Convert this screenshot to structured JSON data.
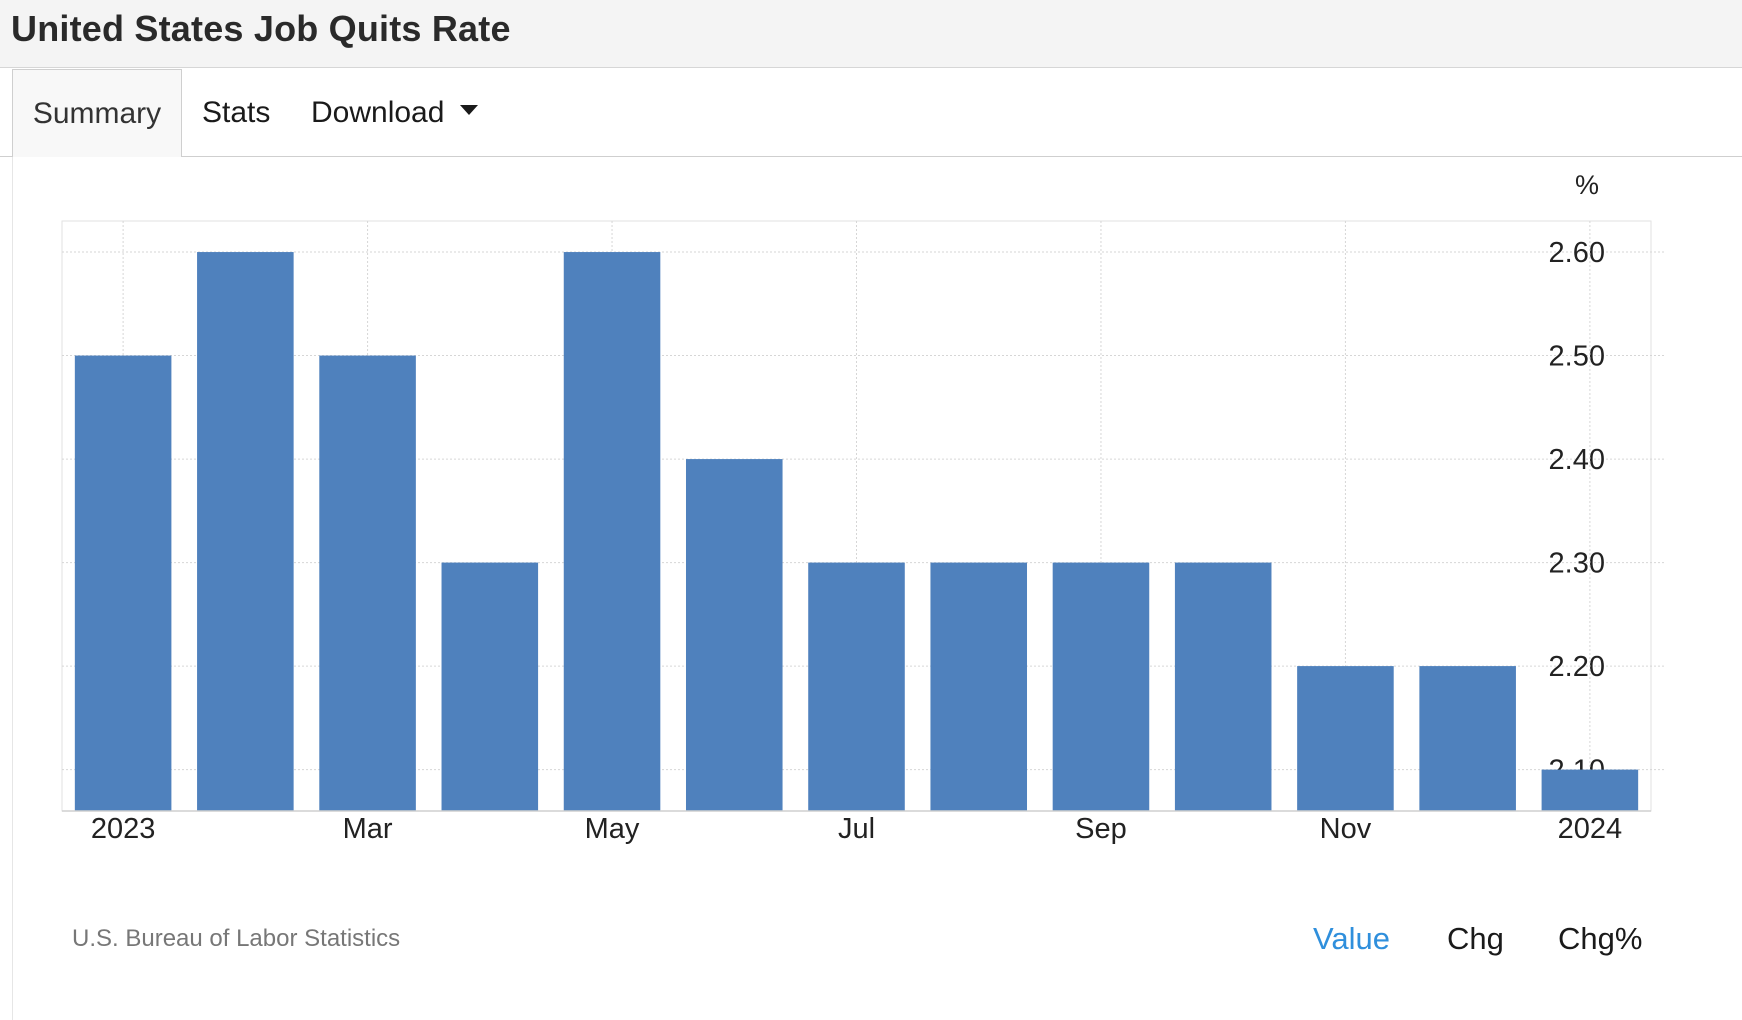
{
  "header": {
    "title": "United States Job Quits Rate"
  },
  "tabs": [
    {
      "label": "Summary",
      "active": true
    },
    {
      "label": "Stats",
      "active": false
    },
    {
      "label": "Download",
      "active": false,
      "icon": "caret-down-icon"
    }
  ],
  "chart_data": {
    "type": "bar",
    "title": "",
    "unit_label": "%",
    "categories": [
      "Jan 2023",
      "Feb 2023",
      "Mar 2023",
      "Apr 2023",
      "May 2023",
      "Jun 2023",
      "Jul 2023",
      "Aug 2023",
      "Sep 2023",
      "Oct 2023",
      "Nov 2023",
      "Dec 2023",
      "Jan 2024"
    ],
    "x_tick_labels": [
      "2023",
      "Mar",
      "May",
      "Jul",
      "Sep",
      "Nov",
      "2024"
    ],
    "x_tick_indices": [
      0,
      2,
      4,
      6,
      8,
      10,
      12
    ],
    "values": [
      2.5,
      2.6,
      2.5,
      2.3,
      2.6,
      2.4,
      2.3,
      2.3,
      2.3,
      2.3,
      2.2,
      2.2,
      2.1
    ],
    "y_ticks": [
      2.1,
      2.2,
      2.3,
      2.4,
      2.5,
      2.6
    ],
    "y_tick_labels": [
      "2.10",
      "2.20",
      "2.30",
      "2.40",
      "2.50",
      "2.60"
    ],
    "ylim": [
      2.06,
      2.63
    ],
    "y_axis_position": "right",
    "grid": true,
    "bar_color": "#4f81bd"
  },
  "footer": {
    "source": "U.S. Bureau of Labor Statistics",
    "modes": [
      {
        "label": "Value",
        "selected": true
      },
      {
        "label": "Chg",
        "selected": false
      },
      {
        "label": "Chg%",
        "selected": false
      }
    ],
    "selected_color": "#2f8fdc"
  }
}
